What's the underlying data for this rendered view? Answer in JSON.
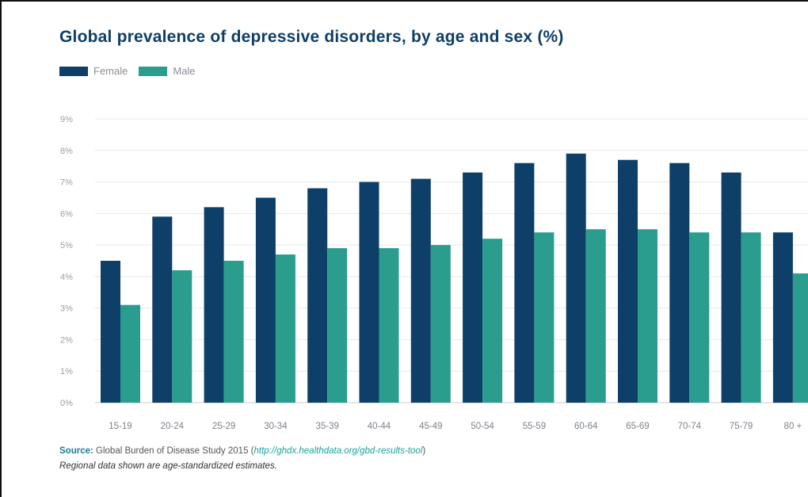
{
  "chart_data": {
    "type": "bar",
    "title": "Global prevalence of depressive disorders, by age and sex (%)",
    "categories": [
      "15-19",
      "20-24",
      "25-29",
      "30-34",
      "35-39",
      "40-44",
      "45-49",
      "50-54",
      "55-59",
      "60-64",
      "65-69",
      "70-74",
      "75-79",
      "80 +"
    ],
    "series": [
      {
        "name": "Female",
        "color": "#0d3f68",
        "values": [
          4.5,
          5.9,
          6.2,
          6.5,
          6.8,
          7.0,
          7.1,
          7.3,
          7.6,
          7.9,
          7.7,
          7.6,
          7.3,
          5.4
        ]
      },
      {
        "name": "Male",
        "color": "#2a9d8f",
        "values": [
          3.1,
          4.2,
          4.5,
          4.7,
          4.9,
          4.9,
          5.0,
          5.2,
          5.4,
          5.5,
          5.5,
          5.4,
          5.4,
          4.1
        ]
      }
    ],
    "yticks": [
      "0%",
      "1%",
      "2%",
      "3%",
      "4%",
      "5%",
      "6%",
      "7%",
      "8%",
      "9%"
    ],
    "ylim": [
      0,
      9
    ],
    "grid": true,
    "legend": "top-left"
  },
  "source": {
    "label": "Source:",
    "text": "Global Burden of Disease Study 2015 (",
    "url": "http://ghdx.healthdata.org/gbd-results-tool",
    "close": ")"
  },
  "note": "Regional data shown are age-standardized estimates."
}
